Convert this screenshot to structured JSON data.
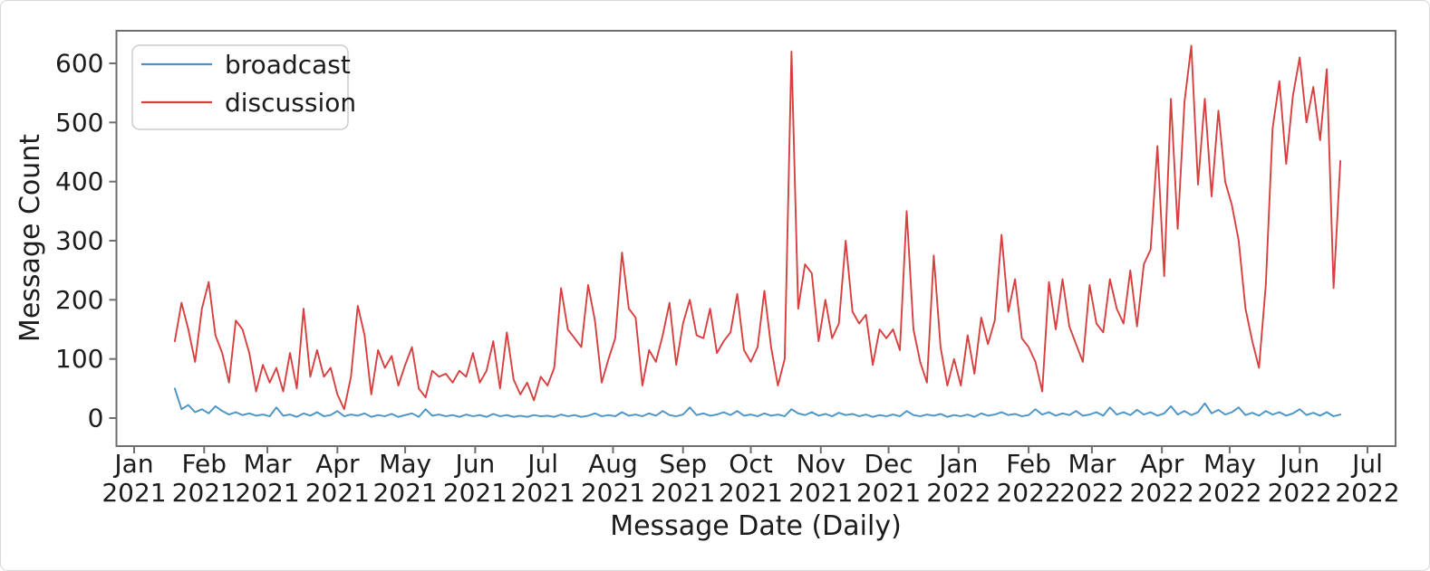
{
  "figure": {
    "xlabel": "Message Date (Daily)",
    "ylabel": "Message Count",
    "background": "#ffffff",
    "spine_color": "#6e6e6e",
    "text_color": "#1c1c1c"
  },
  "legend": {
    "position": "upper left",
    "items": [
      {
        "label": "broadcast",
        "color": "#4a94c5"
      },
      {
        "label": "discussion",
        "color": "#d84040"
      }
    ]
  },
  "chart_data": {
    "type": "line",
    "title": "",
    "xlabel": "Message Date (Daily)",
    "ylabel": "Message Count",
    "grid": false,
    "legend_position": "upper left",
    "ylim": [
      0,
      600
    ],
    "yticks": [
      0,
      100,
      200,
      300,
      400,
      500,
      600
    ],
    "x_tick_labels": [
      {
        "month": "Jan",
        "year": "2021"
      },
      {
        "month": "Feb",
        "year": "2021"
      },
      {
        "month": "Mar",
        "year": "2021"
      },
      {
        "month": "Apr",
        "year": "2021"
      },
      {
        "month": "May",
        "year": "2021"
      },
      {
        "month": "Jun",
        "year": "2021"
      },
      {
        "month": "Jul",
        "year": "2021"
      },
      {
        "month": "Aug",
        "year": "2021"
      },
      {
        "month": "Sep",
        "year": "2021"
      },
      {
        "month": "Oct",
        "year": "2021"
      },
      {
        "month": "Nov",
        "year": "2021"
      },
      {
        "month": "Dec",
        "year": "2021"
      },
      {
        "month": "Jan",
        "year": "2022"
      },
      {
        "month": "Feb",
        "year": "2022"
      },
      {
        "month": "Mar",
        "year": "2022"
      },
      {
        "month": "Apr",
        "year": "2022"
      },
      {
        "month": "May",
        "year": "2022"
      },
      {
        "month": "Jun",
        "year": "2022"
      },
      {
        "month": "Jul",
        "year": "2022"
      }
    ],
    "x_start_date": "2021-01-19",
    "x_step_days": 3,
    "x_end_date": "2022-06-19",
    "series": [
      {
        "name": "broadcast",
        "color": "#4a94c5",
        "values": [
          50,
          15,
          22,
          10,
          15,
          8,
          20,
          12,
          6,
          10,
          5,
          8,
          4,
          6,
          3,
          18,
          4,
          6,
          2,
          8,
          4,
          10,
          3,
          5,
          12,
          3,
          6,
          4,
          8,
          2,
          5,
          3,
          7,
          2,
          5,
          8,
          2,
          15,
          4,
          6,
          3,
          5,
          2,
          6,
          3,
          5,
          2,
          7,
          3,
          5,
          2,
          4,
          2,
          5,
          3,
          4,
          2,
          6,
          3,
          5,
          2,
          4,
          8,
          3,
          5,
          3,
          10,
          4,
          6,
          3,
          8,
          4,
          12,
          5,
          3,
          6,
          18,
          5,
          8,
          4,
          6,
          10,
          5,
          12,
          4,
          6,
          3,
          8,
          4,
          6,
          3,
          15,
          8,
          5,
          10,
          4,
          7,
          3,
          9,
          5,
          7,
          3,
          6,
          2,
          5,
          3,
          6,
          3,
          12,
          5,
          3,
          6,
          4,
          7,
          2,
          5,
          3,
          6,
          2,
          8,
          4,
          6,
          10,
          5,
          7,
          3,
          5,
          15,
          6,
          10,
          4,
          8,
          5,
          12,
          4,
          6,
          10,
          4,
          18,
          6,
          10,
          5,
          14,
          6,
          10,
          4,
          8,
          20,
          6,
          12,
          5,
          10,
          25,
          8,
          14,
          6,
          10,
          18,
          5,
          9,
          4,
          12,
          6,
          10,
          4,
          8,
          15,
          5,
          9,
          4,
          10,
          3,
          6
        ]
      },
      {
        "name": "discussion",
        "color": "#d84040",
        "values": [
          130,
          195,
          150,
          95,
          185,
          230,
          140,
          110,
          60,
          165,
          150,
          110,
          45,
          90,
          60,
          85,
          45,
          110,
          50,
          185,
          70,
          115,
          70,
          85,
          40,
          15,
          70,
          190,
          140,
          40,
          115,
          85,
          105,
          55,
          90,
          120,
          50,
          35,
          80,
          70,
          75,
          60,
          80,
          70,
          110,
          60,
          80,
          130,
          50,
          145,
          65,
          40,
          60,
          30,
          70,
          55,
          85,
          220,
          150,
          135,
          120,
          225,
          165,
          60,
          100,
          135,
          280,
          185,
          170,
          55,
          115,
          95,
          140,
          195,
          90,
          160,
          200,
          140,
          135,
          185,
          110,
          130,
          145,
          210,
          115,
          95,
          120,
          215,
          120,
          55,
          100,
          620,
          185,
          260,
          245,
          130,
          200,
          135,
          160,
          300,
          180,
          160,
          175,
          90,
          150,
          135,
          150,
          115,
          350,
          150,
          95,
          60,
          275,
          120,
          55,
          100,
          55,
          140,
          75,
          170,
          125,
          165,
          310,
          180,
          235,
          135,
          120,
          95,
          45,
          230,
          150,
          235,
          155,
          125,
          95,
          225,
          160,
          145,
          235,
          185,
          160,
          250,
          155,
          260,
          285,
          460,
          240,
          540,
          320,
          535,
          630,
          395,
          540,
          375,
          520,
          400,
          360,
          300,
          185,
          130,
          85,
          225,
          490,
          570,
          430,
          545,
          610,
          500,
          560,
          470,
          590,
          220,
          435
        ]
      }
    ]
  }
}
